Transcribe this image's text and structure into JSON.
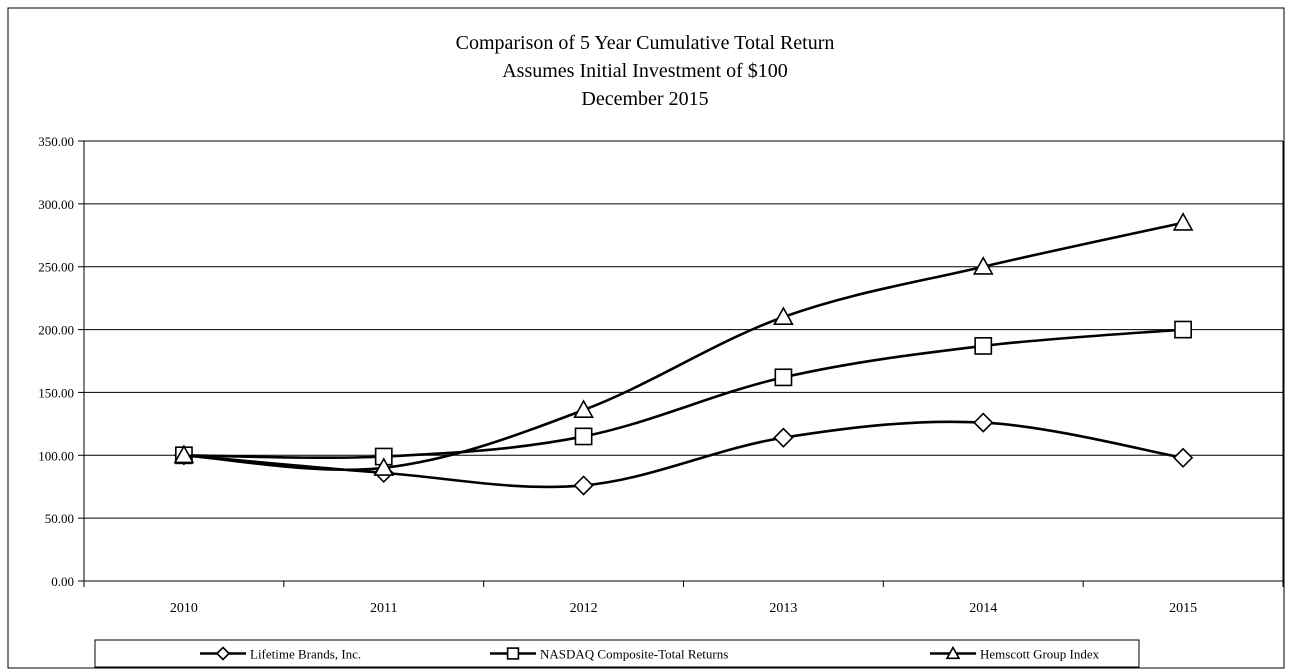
{
  "chart_data": {
    "type": "line",
    "title_lines": [
      "Comparison of 5 Year Cumulative Total Return",
      "Assumes Initial Investment of $100",
      "December 2015"
    ],
    "xlabel": "",
    "ylabel": "",
    "categories": [
      "2010",
      "2011",
      "2012",
      "2013",
      "2014",
      "2015"
    ],
    "ylim": [
      0,
      350
    ],
    "yticks": [
      "0.00",
      "50.00",
      "100.00",
      "150.00",
      "200.00",
      "250.00",
      "300.00",
      "350.00"
    ],
    "grid": "horizontal",
    "legend_position": "bottom",
    "series": [
      {
        "name": "Lifetime Brands, Inc.",
        "marker": "diamond",
        "values": [
          100,
          86,
          76,
          114,
          126,
          98
        ]
      },
      {
        "name": "NASDAQ Composite-Total Returns",
        "marker": "square",
        "values": [
          100,
          99,
          115,
          162,
          187,
          200
        ]
      },
      {
        "name": "Hemscott Group Index",
        "marker": "triangle",
        "values": [
          100,
          90,
          136,
          210,
          250,
          285
        ]
      }
    ],
    "colors": {
      "line": "#000000",
      "marker_fill": "#ffffff",
      "grid": "#000000",
      "background": "#ffffff"
    }
  }
}
